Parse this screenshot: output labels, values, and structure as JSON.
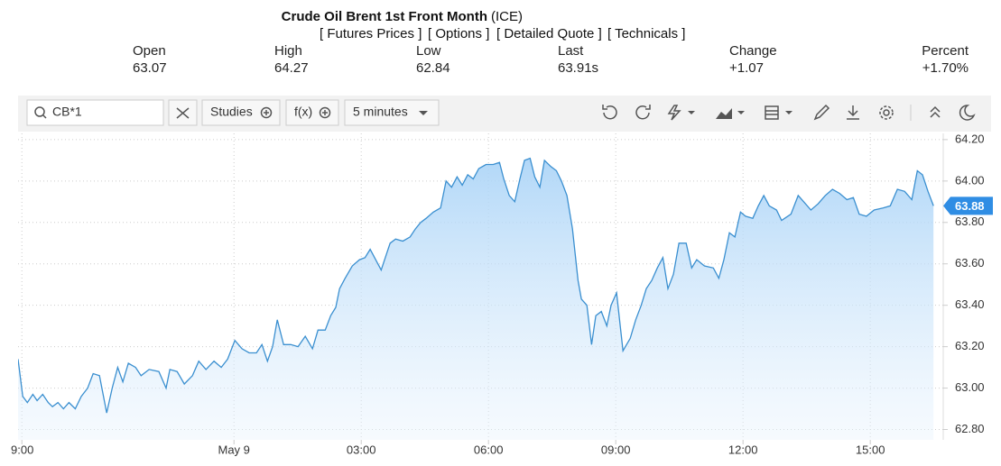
{
  "header": {
    "title": "Crude Oil Brent 1st Front Month",
    "exchange": "(ICE)",
    "links": [
      "[ Futures Prices ]",
      "[ Options ]",
      "[ Detailed Quote ]",
      "[ Technicals ]"
    ]
  },
  "quote": {
    "labels": [
      "Open",
      "High",
      "Low",
      "Last",
      "Change",
      "Percent"
    ],
    "values": [
      "63.07",
      "64.27",
      "62.84",
      "63.91s",
      "+1.07",
      "+1.70%"
    ]
  },
  "toolbar": {
    "symbol": "CB*1",
    "studies": "Studies",
    "fx": "f(x)",
    "interval": "5 minutes"
  },
  "chart_data": {
    "type": "line",
    "color": "#3a8fd0",
    "grid": true,
    "x": [
      -5.09,
      -4.98,
      -4.87,
      -4.74,
      -4.64,
      -4.51,
      -4.38,
      -4.28,
      -4.15,
      -4.02,
      -3.89,
      -3.74,
      -3.6,
      -3.45,
      -3.32,
      -3.17,
      -3.0,
      -2.87,
      -2.74,
      -2.62,
      -2.49,
      -2.32,
      -2.19,
      -2.0,
      -1.77,
      -1.6,
      -1.51,
      -1.34,
      -1.17,
      -0.98,
      -0.83,
      -0.66,
      -0.47,
      -0.3,
      -0.15,
      0.02,
      0.19,
      0.36,
      0.53,
      0.66,
      0.79,
      0.91,
      1.02,
      1.17,
      1.34,
      1.51,
      1.68,
      1.85,
      1.98,
      2.15,
      2.28,
      2.4,
      2.49,
      2.62,
      2.79,
      2.96,
      3.09,
      3.21,
      3.34,
      3.47,
      3.6,
      3.68,
      3.81,
      3.98,
      4.15,
      4.28,
      4.4,
      4.53,
      4.7,
      4.87,
      5.0,
      5.13,
      5.26,
      5.38,
      5.51,
      5.64,
      5.77,
      5.94,
      6.11,
      6.26,
      6.36,
      6.49,
      6.62,
      6.74,
      6.85,
      6.98,
      7.09,
      7.21,
      7.32,
      7.47,
      7.6,
      7.72,
      7.85,
      7.98,
      8.11,
      8.19,
      8.32,
      8.43,
      8.53,
      8.66,
      8.79,
      8.89,
      9.02,
      9.17,
      9.34,
      9.47,
      9.6,
      9.72,
      9.85,
      9.98,
      10.11,
      10.23,
      10.36,
      10.49,
      10.66,
      10.79,
      10.91,
      11.09,
      11.3,
      11.43,
      11.55,
      11.68,
      11.81,
      11.94,
      12.06,
      12.23,
      12.36,
      12.49,
      12.62,
      12.79,
      12.91,
      13.13,
      13.3,
      13.43,
      13.6,
      13.77,
      13.94,
      14.11,
      14.28,
      14.45,
      14.6,
      14.74,
      14.91,
      15.09,
      15.3,
      15.47,
      15.64,
      15.81,
      15.98,
      16.11,
      16.23,
      16.36,
      16.49
    ],
    "values": [
      63.14,
      62.96,
      62.93,
      62.97,
      62.94,
      62.97,
      62.93,
      62.91,
      62.93,
      62.9,
      62.93,
      62.9,
      62.96,
      63.0,
      63.07,
      63.06,
      62.88,
      63.0,
      63.1,
      63.03,
      63.12,
      63.1,
      63.06,
      63.09,
      63.08,
      63.0,
      63.09,
      63.08,
      63.02,
      63.06,
      63.13,
      63.09,
      63.13,
      63.1,
      63.14,
      63.23,
      63.19,
      63.17,
      63.17,
      63.21,
      63.13,
      63.2,
      63.33,
      63.21,
      63.21,
      63.2,
      63.25,
      63.19,
      63.28,
      63.28,
      63.35,
      63.39,
      63.48,
      63.53,
      63.59,
      63.62,
      63.63,
      63.67,
      63.62,
      63.57,
      63.65,
      63.7,
      63.72,
      63.71,
      63.73,
      63.77,
      63.8,
      63.82,
      63.85,
      63.87,
      64.0,
      63.97,
      64.02,
      63.98,
      64.03,
      64.01,
      64.06,
      64.08,
      64.08,
      64.09,
      64.01,
      63.93,
      63.9,
      64.01,
      64.1,
      64.11,
      64.02,
      63.97,
      64.1,
      64.07,
      64.05,
      64.0,
      63.93,
      63.77,
      63.52,
      63.43,
      63.4,
      63.21,
      63.35,
      63.37,
      63.3,
      63.4,
      63.46,
      63.18,
      63.24,
      63.33,
      63.4,
      63.48,
      63.52,
      63.58,
      63.63,
      63.48,
      63.55,
      63.7,
      63.7,
      63.58,
      63.62,
      63.59,
      63.58,
      63.53,
      63.62,
      63.75,
      63.73,
      63.85,
      63.83,
      63.82,
      63.88,
      63.93,
      63.88,
      63.86,
      63.81,
      63.84,
      63.93,
      63.9,
      63.86,
      63.89,
      63.93,
      63.96,
      63.94,
      63.91,
      63.92,
      63.84,
      63.83,
      63.86,
      63.87,
      63.88,
      63.96,
      63.95,
      63.91,
      64.05,
      64.03,
      63.95,
      63.88
    ],
    "xlim": [
      -5.09,
      16.72
    ],
    "xticks": [
      {
        "value": -5,
        "label": "9:00"
      },
      {
        "value": 0,
        "label": "May 9"
      },
      {
        "value": 3,
        "label": "03:00"
      },
      {
        "value": 6,
        "label": "06:00"
      },
      {
        "value": 9,
        "label": "09:00"
      },
      {
        "value": 12,
        "label": "12:00"
      },
      {
        "value": 15,
        "label": "15:00"
      }
    ],
    "ylim": [
      62.75,
      64.23
    ],
    "yticks": [
      {
        "value": 62.8,
        "label": "62.80"
      },
      {
        "value": 63,
        "label": "63.00"
      },
      {
        "value": 63.2,
        "label": "63.20"
      },
      {
        "value": 63.4,
        "label": "63.40"
      },
      {
        "value": 63.6,
        "label": "63.60"
      },
      {
        "value": 63.8,
        "label": "63.80"
      },
      {
        "value": 64,
        "label": "64.00"
      },
      {
        "value": 64.2,
        "label": "64.20"
      }
    ],
    "last_value": 63.88
  }
}
